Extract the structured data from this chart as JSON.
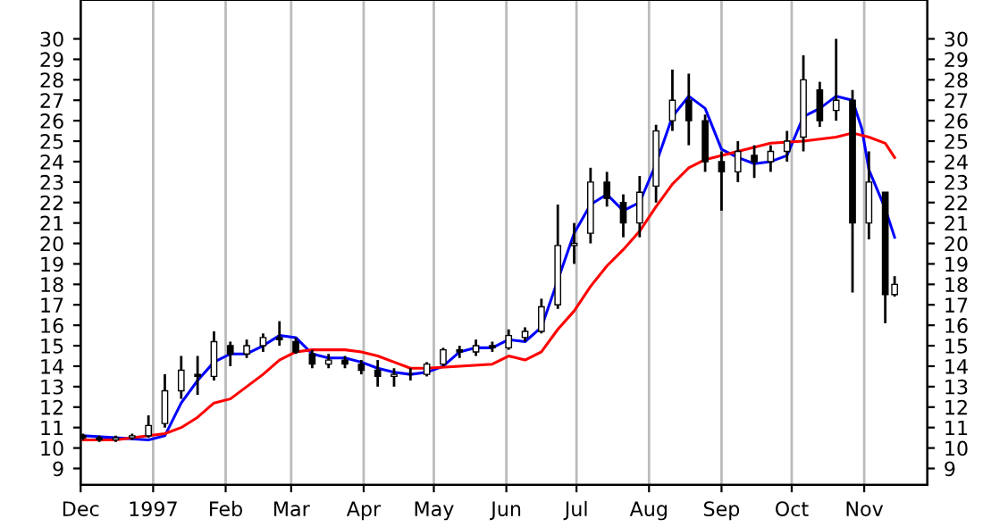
{
  "chart_data": {
    "type": "candlestick",
    "x": [
      "1996-12-02",
      "1996-12-09",
      "1996-12-16",
      "1996-12-23",
      "1996-12-30",
      "1997-01-06",
      "1997-01-13",
      "1997-01-20",
      "1997-01-27",
      "1997-02-03",
      "1997-02-10",
      "1997-02-17",
      "1997-02-24",
      "1997-03-03",
      "1997-03-10",
      "1997-03-17",
      "1997-03-24",
      "1997-03-31",
      "1997-04-07",
      "1997-04-14",
      "1997-04-21",
      "1997-04-28",
      "1997-05-05",
      "1997-05-12",
      "1997-05-19",
      "1997-05-26",
      "1997-06-02",
      "1997-06-09",
      "1997-06-16",
      "1997-06-23",
      "1997-06-30",
      "1997-07-07",
      "1997-07-14",
      "1997-07-21",
      "1997-07-28",
      "1997-08-04",
      "1997-08-11",
      "1997-08-18",
      "1997-08-25",
      "1997-09-01",
      "1997-09-08",
      "1997-09-15",
      "1997-09-22",
      "1997-09-29",
      "1997-10-06",
      "1997-10-13",
      "1997-10-20",
      "1997-10-27",
      "1997-11-03",
      "1997-11-10",
      "1997-11-14"
    ],
    "ohlc": [
      [
        10.6,
        10.7,
        10.4,
        10.5
      ],
      [
        10.5,
        10.6,
        10.3,
        10.4
      ],
      [
        10.4,
        10.6,
        10.3,
        10.5
      ],
      [
        10.5,
        10.7,
        10.4,
        10.6
      ],
      [
        10.6,
        11.6,
        10.5,
        11.1
      ],
      [
        11.2,
        13.6,
        11.0,
        12.8
      ],
      [
        12.8,
        14.5,
        12.4,
        13.8
      ],
      [
        13.6,
        14.5,
        12.6,
        13.5
      ],
      [
        13.5,
        15.7,
        13.3,
        15.2
      ],
      [
        15.0,
        15.2,
        14.0,
        14.6
      ],
      [
        14.6,
        15.3,
        14.4,
        15.0
      ],
      [
        15.0,
        15.6,
        14.7,
        15.4
      ],
      [
        15.4,
        16.2,
        15.0,
        15.3
      ],
      [
        15.2,
        15.4,
        14.6,
        14.7
      ],
      [
        14.6,
        14.8,
        13.9,
        14.1
      ],
      [
        14.1,
        14.6,
        13.9,
        14.3
      ],
      [
        14.3,
        14.5,
        13.9,
        14.1
      ],
      [
        14.1,
        14.3,
        13.6,
        13.8
      ],
      [
        13.8,
        14.3,
        13.0,
        13.5
      ],
      [
        13.5,
        13.9,
        13.0,
        13.6
      ],
      [
        13.6,
        13.9,
        13.3,
        13.6
      ],
      [
        13.6,
        14.2,
        13.5,
        14.1
      ],
      [
        14.1,
        14.9,
        14.0,
        14.8
      ],
      [
        14.8,
        15.0,
        14.4,
        14.7
      ],
      [
        14.7,
        15.3,
        14.5,
        15.0
      ],
      [
        15.0,
        15.2,
        14.7,
        14.9
      ],
      [
        14.9,
        15.8,
        14.8,
        15.5
      ],
      [
        15.4,
        15.9,
        15.2,
        15.7
      ],
      [
        15.7,
        17.3,
        15.6,
        16.9
      ],
      [
        17.0,
        21.9,
        16.8,
        19.9
      ],
      [
        19.9,
        21.0,
        19.0,
        20.0
      ],
      [
        20.5,
        23.7,
        20.0,
        23.0
      ],
      [
        23.0,
        23.5,
        21.8,
        22.2
      ],
      [
        22.0,
        22.4,
        20.3,
        21.0
      ],
      [
        21.0,
        23.3,
        20.3,
        22.5
      ],
      [
        22.8,
        25.8,
        22.0,
        25.5
      ],
      [
        26.0,
        28.5,
        25.5,
        27.0
      ],
      [
        27.0,
        28.3,
        24.8,
        26.0
      ],
      [
        26.0,
        26.3,
        23.5,
        24.0
      ],
      [
        24.0,
        24.5,
        21.6,
        23.5
      ],
      [
        23.5,
        25.0,
        23.0,
        24.5
      ],
      [
        24.3,
        24.8,
        23.2,
        24.0
      ],
      [
        24.0,
        24.8,
        23.5,
        24.5
      ],
      [
        24.5,
        25.5,
        24.0,
        25.0
      ],
      [
        25.2,
        29.2,
        24.5,
        28.0
      ],
      [
        27.5,
        27.9,
        25.7,
        26.0
      ],
      [
        26.5,
        30.0,
        26.0,
        27.0
      ],
      [
        27.0,
        27.5,
        17.6,
        21.0
      ],
      [
        21.0,
        24.5,
        20.2,
        23.0
      ],
      [
        22.5,
        22.5,
        16.1,
        17.5
      ],
      [
        17.5,
        18.4,
        17.4,
        18.0
      ]
    ],
    "series": [
      {
        "type": "line",
        "color": "#0000ff",
        "x": [
          "1996-12-02",
          "1996-12-16",
          "1996-12-30",
          "1997-01-06",
          "1997-01-13",
          "1997-01-20",
          "1997-01-27",
          "1997-02-03",
          "1997-02-10",
          "1997-02-17",
          "1997-02-24",
          "1997-03-03",
          "1997-03-10",
          "1997-03-17",
          "1997-03-24",
          "1997-03-31",
          "1997-04-07",
          "1997-04-14",
          "1997-04-21",
          "1997-04-28",
          "1997-05-05",
          "1997-05-12",
          "1997-05-19",
          "1997-05-26",
          "1997-06-02",
          "1997-06-09",
          "1997-06-16",
          "1997-06-23",
          "1997-06-30",
          "1997-07-07",
          "1997-07-14",
          "1997-07-21",
          "1997-07-28",
          "1997-08-04",
          "1997-08-11",
          "1997-08-18",
          "1997-08-25",
          "1997-09-01",
          "1997-09-08",
          "1997-09-15",
          "1997-09-22",
          "1997-09-29",
          "1997-10-06",
          "1997-10-13",
          "1997-10-20",
          "1997-10-27",
          "1997-10-31",
          "1997-11-03",
          "1997-11-10",
          "1997-11-14"
        ],
        "values": [
          10.6,
          10.5,
          10.4,
          10.6,
          12.2,
          13.3,
          14.2,
          14.6,
          14.6,
          15.0,
          15.5,
          15.4,
          14.6,
          14.4,
          14.4,
          14.2,
          13.9,
          13.7,
          13.6,
          13.7,
          14.0,
          14.7,
          14.9,
          14.9,
          15.3,
          15.2,
          15.9,
          18.2,
          20.5,
          21.9,
          22.4,
          21.6,
          22.0,
          23.9,
          26.2,
          27.2,
          26.6,
          24.6,
          24.2,
          23.9,
          24.0,
          24.3,
          26.2,
          26.6,
          27.2,
          27.0,
          25.6,
          23.6,
          21.7,
          20.3
        ]
      },
      {
        "type": "line",
        "color": "#ff0000",
        "x": [
          "1996-12-02",
          "1996-12-16",
          "1996-12-30",
          "1997-01-06",
          "1997-01-13",
          "1997-01-20",
          "1997-01-27",
          "1997-02-03",
          "1997-02-10",
          "1997-02-17",
          "1997-02-24",
          "1997-03-03",
          "1997-03-10",
          "1997-03-17",
          "1997-03-24",
          "1997-03-31",
          "1997-04-07",
          "1997-04-14",
          "1997-04-21",
          "1997-04-28",
          "1997-05-12",
          "1997-05-26",
          "1997-06-02",
          "1997-06-09",
          "1997-06-16",
          "1997-06-23",
          "1997-06-30",
          "1997-07-07",
          "1997-07-14",
          "1997-07-21",
          "1997-07-28",
          "1997-08-04",
          "1997-08-11",
          "1997-08-18",
          "1997-08-25",
          "1997-09-08",
          "1997-09-22",
          "1997-10-06",
          "1997-10-20",
          "1997-10-27",
          "1997-11-03",
          "1997-11-10",
          "1997-11-14"
        ],
        "values": [
          10.4,
          10.4,
          10.6,
          10.7,
          11.0,
          11.5,
          12.2,
          12.4,
          13.0,
          13.6,
          14.3,
          14.7,
          14.8,
          14.8,
          14.8,
          14.7,
          14.5,
          14.2,
          13.9,
          13.9,
          14.0,
          14.1,
          14.5,
          14.3,
          14.7,
          15.8,
          16.7,
          17.9,
          18.9,
          19.7,
          20.6,
          21.8,
          22.9,
          23.7,
          24.1,
          24.5,
          24.9,
          25.0,
          25.2,
          25.4,
          25.2,
          24.9,
          24.2
        ]
      }
    ],
    "color": "#000000",
    "xlim": [
      "1996-12-01",
      "1997-11-28"
    ],
    "xticks": [
      {
        "value": "1996-12-01",
        "label": "Dec"
      },
      {
        "value": "1997-01-01",
        "label": "1997"
      },
      {
        "value": "1997-02-01",
        "label": "Feb"
      },
      {
        "value": "1997-03-01",
        "label": "Mar"
      },
      {
        "value": "1997-04-01",
        "label": "Apr"
      },
      {
        "value": "1997-05-01",
        "label": "May"
      },
      {
        "value": "1997-06-01",
        "label": "Jun"
      },
      {
        "value": "1997-07-01",
        "label": "Jul"
      },
      {
        "value": "1997-08-01",
        "label": "Aug"
      },
      {
        "value": "1997-09-01",
        "label": "Sep"
      },
      {
        "value": "1997-10-01",
        "label": "Oct"
      },
      {
        "value": "1997-11-01",
        "label": "Nov"
      }
    ],
    "ylim": [
      8.2,
      31.9
    ],
    "yticks": [
      9,
      10,
      11,
      12,
      13,
      14,
      15,
      16,
      17,
      18,
      19,
      20,
      21,
      22,
      23,
      24,
      25,
      26,
      27,
      28,
      29,
      30
    ],
    "y2lim": [
      8.2,
      31.9
    ],
    "y2ticks": [
      9,
      10,
      11,
      12,
      13,
      14,
      15,
      16,
      17,
      18,
      19,
      20,
      21,
      22,
      23,
      24,
      25,
      26,
      27,
      28,
      29,
      30
    ],
    "grid": "x",
    "legend": false,
    "marker": "none",
    "line_style": "solid"
  }
}
